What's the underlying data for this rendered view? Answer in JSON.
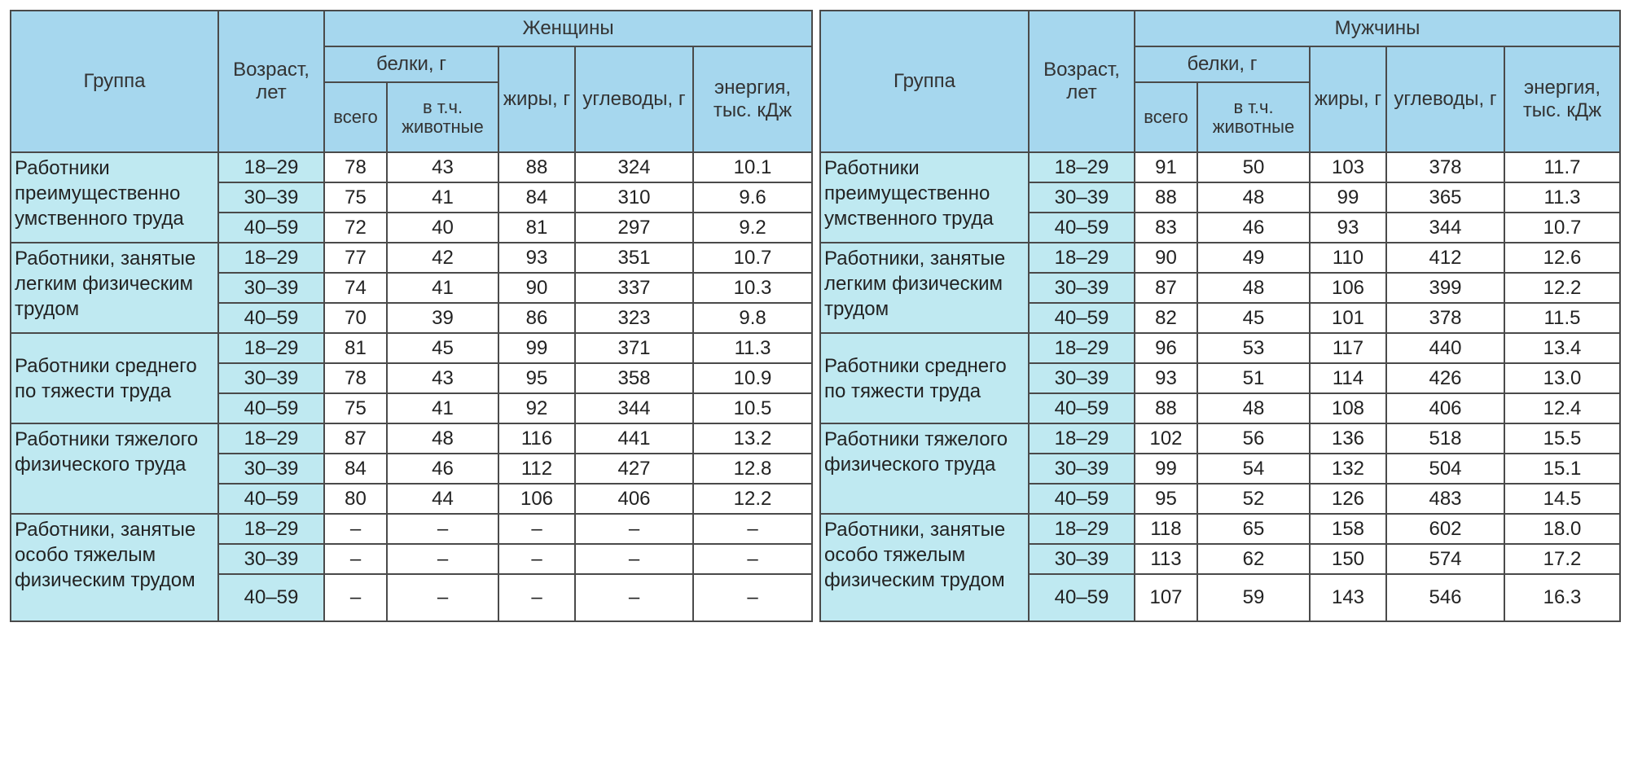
{
  "headers": {
    "group": "Группа",
    "age": "Возраст, лет",
    "proteins": "белки, г",
    "proteins_total": "всего",
    "proteins_animal": "в т.ч. животные",
    "fats": "жиры, г",
    "carbs": "углеводы, г",
    "energy": "энергия, тыс. кДж"
  },
  "tables": [
    {
      "title": "Женщины",
      "groups": [
        {
          "name": "Работники преимущественно умственного труда",
          "rows": [
            {
              "age": "18–29",
              "total": "78",
              "animal": "43",
              "fats": "88",
              "carbs": "324",
              "energy": "10.1"
            },
            {
              "age": "30–39",
              "total": "75",
              "animal": "41",
              "fats": "84",
              "carbs": "310",
              "energy": "9.6"
            },
            {
              "age": "40–59",
              "total": "72",
              "animal": "40",
              "fats": "81",
              "carbs": "297",
              "energy": "9.2"
            }
          ]
        },
        {
          "name": "Работники, занятые легким физическим трудом",
          "rows": [
            {
              "age": "18–29",
              "total": "77",
              "animal": "42",
              "fats": "93",
              "carbs": "351",
              "energy": "10.7"
            },
            {
              "age": "30–39",
              "total": "74",
              "animal": "41",
              "fats": "90",
              "carbs": "337",
              "energy": "10.3"
            },
            {
              "age": "40–59",
              "total": "70",
              "animal": "39",
              "fats": "86",
              "carbs": "323",
              "energy": "9.8"
            }
          ]
        },
        {
          "name": "Работники среднего по тяжести труда",
          "rows": [
            {
              "age": "18–29",
              "total": "81",
              "animal": "45",
              "fats": "99",
              "carbs": "371",
              "energy": "11.3"
            },
            {
              "age": "30–39",
              "total": "78",
              "animal": "43",
              "fats": "95",
              "carbs": "358",
              "energy": "10.9"
            },
            {
              "age": "40–59",
              "total": "75",
              "animal": "41",
              "fats": "92",
              "carbs": "344",
              "energy": "10.5"
            }
          ]
        },
        {
          "name": "Работники тяжелого физического труда",
          "rows": [
            {
              "age": "18–29",
              "total": "87",
              "animal": "48",
              "fats": "116",
              "carbs": "441",
              "energy": "13.2"
            },
            {
              "age": "30–39",
              "total": "84",
              "animal": "46",
              "fats": "112",
              "carbs": "427",
              "energy": "12.8"
            },
            {
              "age": "40–59",
              "total": "80",
              "animal": "44",
              "fats": "106",
              "carbs": "406",
              "energy": "12.2"
            }
          ]
        },
        {
          "name": "Работники, занятые особо тяжелым физическим трудом",
          "rows": [
            {
              "age": "18–29",
              "total": "–",
              "animal": "–",
              "fats": "–",
              "carbs": "–",
              "energy": "–"
            },
            {
              "age": "30–39",
              "total": "–",
              "animal": "–",
              "fats": "–",
              "carbs": "–",
              "energy": "–"
            },
            {
              "age": "40–59",
              "total": "–",
              "animal": "–",
              "fats": "–",
              "carbs": "–",
              "energy": "–"
            }
          ]
        }
      ]
    },
    {
      "title": "Мужчины",
      "groups": [
        {
          "name": "Работники преимущественно умственного труда",
          "rows": [
            {
              "age": "18–29",
              "total": "91",
              "animal": "50",
              "fats": "103",
              "carbs": "378",
              "energy": "11.7"
            },
            {
              "age": "30–39",
              "total": "88",
              "animal": "48",
              "fats": "99",
              "carbs": "365",
              "energy": "11.3"
            },
            {
              "age": "40–59",
              "total": "83",
              "animal": "46",
              "fats": "93",
              "carbs": "344",
              "energy": "10.7"
            }
          ]
        },
        {
          "name": "Работники, занятые легким физическим трудом",
          "rows": [
            {
              "age": "18–29",
              "total": "90",
              "animal": "49",
              "fats": "110",
              "carbs": "412",
              "energy": "12.6"
            },
            {
              "age": "30–39",
              "total": "87",
              "animal": "48",
              "fats": "106",
              "carbs": "399",
              "energy": "12.2"
            },
            {
              "age": "40–59",
              "total": "82",
              "animal": "45",
              "fats": "101",
              "carbs": "378",
              "energy": "11.5"
            }
          ]
        },
        {
          "name": "Работники среднего по тяжести труда",
          "rows": [
            {
              "age": "18–29",
              "total": "96",
              "animal": "53",
              "fats": "117",
              "carbs": "440",
              "energy": "13.4"
            },
            {
              "age": "30–39",
              "total": "93",
              "animal": "51",
              "fats": "114",
              "carbs": "426",
              "energy": "13.0"
            },
            {
              "age": "40–59",
              "total": "88",
              "animal": "48",
              "fats": "108",
              "carbs": "406",
              "energy": "12.4"
            }
          ]
        },
        {
          "name": "Работники тяжелого физического труда",
          "rows": [
            {
              "age": "18–29",
              "total": "102",
              "animal": "56",
              "fats": "136",
              "carbs": "518",
              "energy": "15.5"
            },
            {
              "age": "30–39",
              "total": "99",
              "animal": "54",
              "fats": "132",
              "carbs": "504",
              "energy": "15.1"
            },
            {
              "age": "40–59",
              "total": "95",
              "animal": "52",
              "fats": "126",
              "carbs": "483",
              "energy": "14.5"
            }
          ]
        },
        {
          "name": "Работники, занятые особо тяжелым физическим трудом",
          "rows": [
            {
              "age": "18–29",
              "total": "118",
              "animal": "65",
              "fats": "158",
              "carbs": "602",
              "energy": "18.0"
            },
            {
              "age": "30–39",
              "total": "113",
              "animal": "62",
              "fats": "150",
              "carbs": "574",
              "energy": "17.2"
            },
            {
              "age": "40–59",
              "total": "107",
              "animal": "59",
              "fats": "143",
              "carbs": "546",
              "energy": "16.3"
            }
          ]
        }
      ]
    }
  ]
}
